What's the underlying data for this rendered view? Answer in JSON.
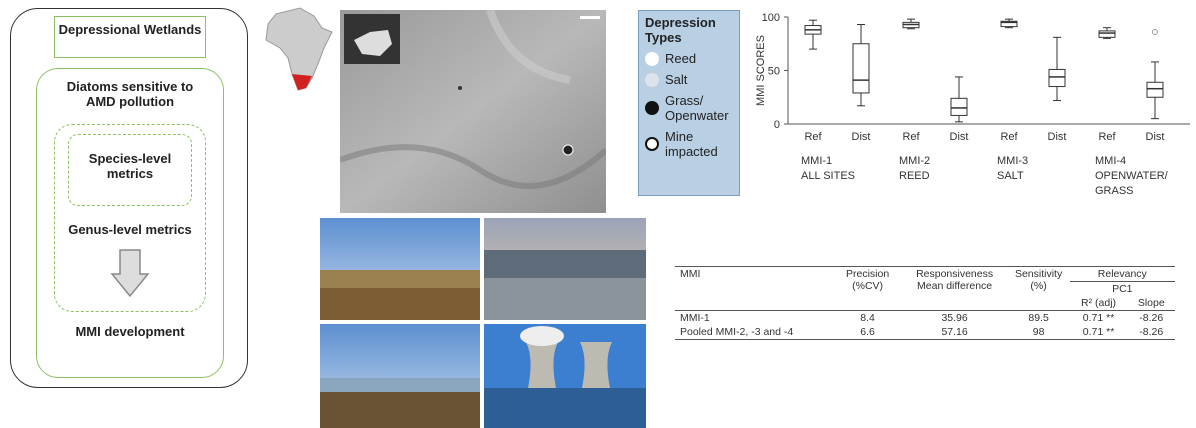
{
  "flow": {
    "top": "Depressional Wetlands",
    "level1": "Diatoms sensitive to AMD pollution",
    "level2": "Species-level metrics",
    "level3": "Genus-level metrics",
    "result": "MMI development"
  },
  "legend": {
    "title": "Depression Types",
    "items": [
      "Reed",
      "Salt",
      "Grass/ Openwater",
      "Mine impacted"
    ]
  },
  "chart_data": {
    "type": "box",
    "ylabel": "MMI SCORES",
    "ylim": [
      0,
      100
    ],
    "yticks": [
      0,
      50,
      100
    ],
    "groups": [
      {
        "label": [
          "MMI-1",
          "ALL SITES"
        ],
        "boxes": [
          {
            "category": "Ref",
            "whisker_low": 70,
            "q1": 84,
            "median": 88,
            "q3": 92,
            "whisker_high": 97
          },
          {
            "category": "Dist",
            "whisker_low": 17,
            "q1": 29,
            "median": 41,
            "q3": 75,
            "whisker_high": 93
          }
        ]
      },
      {
        "label": [
          "MMI-2",
          "REED"
        ],
        "boxes": [
          {
            "category": "Ref",
            "whisker_low": 89,
            "q1": 90,
            "median": 93,
            "q3": 95,
            "whisker_high": 98
          },
          {
            "category": "Dist",
            "whisker_low": 2,
            "q1": 8,
            "median": 15,
            "q3": 24,
            "whisker_high": 44
          }
        ]
      },
      {
        "label": [
          "MMI-3",
          "SALT"
        ],
        "boxes": [
          {
            "category": "Ref",
            "whisker_low": 90,
            "q1": 91,
            "median": 95,
            "q3": 96,
            "whisker_high": 98
          },
          {
            "category": "Dist",
            "whisker_low": 22,
            "q1": 35,
            "median": 44,
            "q3": 51,
            "whisker_high": 81
          }
        ]
      },
      {
        "label": [
          "MMI-4",
          "OPENWATER/",
          "GRASS"
        ],
        "boxes": [
          {
            "category": "Ref",
            "whisker_low": 80,
            "q1": 81,
            "median": 85,
            "q3": 87,
            "whisker_high": 90
          },
          {
            "category": "Dist",
            "whisker_low": 5,
            "q1": 25,
            "median": 33,
            "q3": 39,
            "whisker_high": 58,
            "outliers": [
              86
            ]
          }
        ]
      }
    ]
  },
  "table": {
    "header": [
      "MMI",
      "Precision (%CV)",
      "Responsiveness Mean difference",
      "Sensitivity (%)",
      "Relevancy",
      "PC1",
      "R² (adj)",
      "Slope"
    ],
    "rows": [
      [
        "MMI-1",
        "8.4",
        "35.96",
        "89.5",
        "0.71 **",
        "-8.26"
      ],
      [
        "Pooled MMI-2, -3 and -4",
        "6.6",
        "57.16",
        "98",
        "0.71 **",
        "-8.26"
      ]
    ]
  }
}
